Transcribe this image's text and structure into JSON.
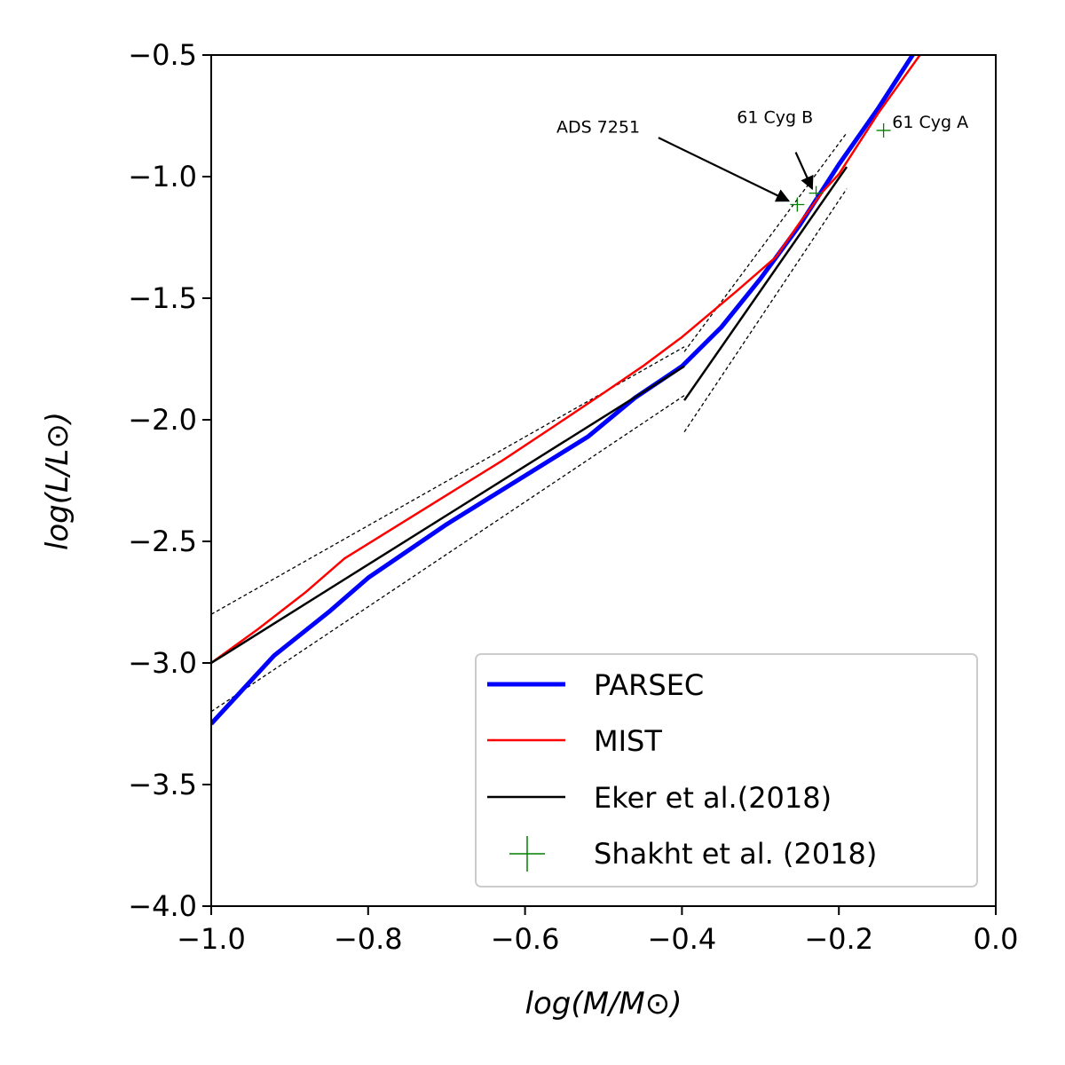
{
  "chart_data": {
    "type": "line",
    "xlabel": "log(M/M⊙)",
    "ylabel": "log(L/L⊙)",
    "xlim": [
      -1.0,
      0.0
    ],
    "ylim": [
      -4.0,
      -0.5
    ],
    "xticks": [
      -1.0,
      -0.8,
      -0.6,
      -0.4,
      -0.2,
      0.0
    ],
    "xtick_labels": [
      "−1.0",
      "−0.8",
      "−0.6",
      "−0.4",
      "−0.2",
      "0.0"
    ],
    "yticks": [
      -4.0,
      -3.5,
      -3.0,
      -2.5,
      -2.0,
      -1.5,
      -1.0,
      -0.5
    ],
    "ytick_labels": [
      "−4.0",
      "−3.5",
      "−3.0",
      "−2.5",
      "−2.0",
      "−1.5",
      "−1.0",
      "−0.5"
    ],
    "grid": false,
    "legend_position": "bottom-right",
    "series": [
      {
        "name": "PARSEC",
        "kind": "line",
        "color": "#0000ff",
        "width": "thick",
        "x": [
          -1.0,
          -0.92,
          -0.85,
          -0.8,
          -0.7,
          -0.6,
          -0.52,
          -0.46,
          -0.4,
          -0.35,
          -0.3,
          -0.25,
          -0.2,
          -0.15,
          -0.1
        ],
        "y": [
          -3.25,
          -2.97,
          -2.79,
          -2.65,
          -2.43,
          -2.23,
          -2.07,
          -1.91,
          -1.78,
          -1.62,
          -1.42,
          -1.2,
          -0.95,
          -0.72,
          -0.47
        ]
      },
      {
        "name": "MIST",
        "kind": "line",
        "color": "#ff0000",
        "width": "thin",
        "x": [
          -1.0,
          -0.94,
          -0.88,
          -0.83,
          -0.77,
          -0.7,
          -0.63,
          -0.56,
          -0.5,
          -0.45,
          -0.4,
          -0.33,
          -0.28,
          -0.25,
          -0.22,
          -0.2,
          -0.15,
          -0.09
        ],
        "y": [
          -3.0,
          -2.86,
          -2.71,
          -2.57,
          -2.45,
          -2.31,
          -2.17,
          -2.02,
          -1.89,
          -1.78,
          -1.66,
          -1.47,
          -1.33,
          -1.19,
          -1.06,
          -0.99,
          -0.74,
          -0.47
        ]
      },
      {
        "name": "Eker et al.(2018)",
        "kind": "line",
        "color": "#000000",
        "width": "thin",
        "segments": [
          {
            "x": [
              -1.0,
              -0.397
            ],
            "y": [
              -3.0,
              -1.78
            ]
          },
          {
            "x": [
              -0.397,
              -0.19
            ],
            "y": [
              -1.92,
              -0.96
            ]
          }
        ]
      },
      {
        "name": "Shakht et al. (2018)",
        "kind": "scatter",
        "color": "#008000",
        "marker": "plus",
        "x": [
          -0.253,
          -0.229,
          -0.143
        ],
        "y": [
          -1.115,
          -1.068,
          -0.81
        ]
      }
    ],
    "error_bounds": {
      "color": "#000000",
      "style": "dashed",
      "segments": [
        {
          "x": [
            -1.0,
            -0.397
          ],
          "y": [
            -2.8,
            -1.7
          ]
        },
        {
          "x": [
            -1.0,
            -0.397
          ],
          "y": [
            -3.2,
            -1.9
          ]
        },
        {
          "x": [
            -0.397,
            -0.19
          ],
          "y": [
            -1.72,
            -0.82
          ]
        },
        {
          "x": [
            -0.397,
            -0.19
          ],
          "y": [
            -2.05,
            -1.05
          ]
        }
      ]
    },
    "annotations": [
      {
        "text": "ADS 7251",
        "text_x": -0.56,
        "text_y": -0.82,
        "arrow_from": [
          -0.43,
          -0.84
        ],
        "arrow_to": [
          -0.264,
          -1.1
        ]
      },
      {
        "text": "61 Cyg B",
        "text_x": -0.33,
        "text_y": -0.78,
        "arrow_from": [
          -0.255,
          -0.9
        ],
        "arrow_to": [
          -0.234,
          -1.05
        ]
      },
      {
        "text": "61 Cyg A",
        "text_x": -0.132,
        "text_y": -0.8
      }
    ]
  }
}
